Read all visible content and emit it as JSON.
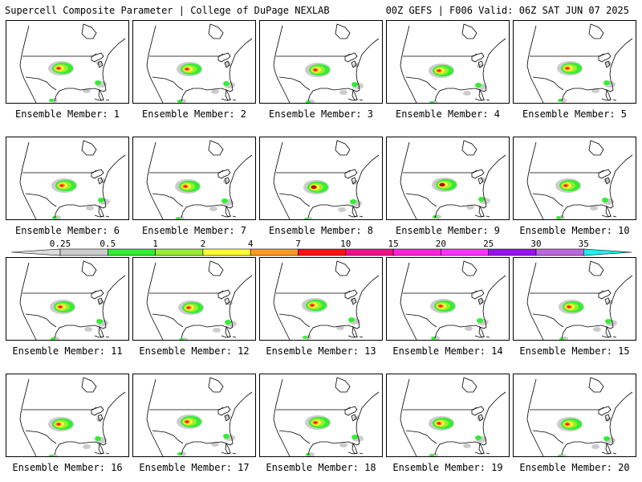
{
  "header": {
    "left": "Supercell Composite Parameter | College of DuPage NEXLAB",
    "right": "00Z GEFS | F006 Valid: 06Z SAT JUN 07 2025"
  },
  "panels": [
    {
      "label": "Ensemble Member: 1"
    },
    {
      "label": "Ensemble Member: 2"
    },
    {
      "label": "Ensemble Member: 3"
    },
    {
      "label": "Ensemble Member: 4"
    },
    {
      "label": "Ensemble Member: 5"
    },
    {
      "label": "Ensemble Member: 6"
    },
    {
      "label": "Ensemble Member: 7"
    },
    {
      "label": "Ensemble Member: 8"
    },
    {
      "label": "Ensemble Member: 9"
    },
    {
      "label": "Ensemble Member: 10"
    },
    {
      "label": "Ensemble Member: 11"
    },
    {
      "label": "Ensemble Member: 12"
    },
    {
      "label": "Ensemble Member: 13"
    },
    {
      "label": "Ensemble Member: 14"
    },
    {
      "label": "Ensemble Member: 15"
    },
    {
      "label": "Ensemble Member: 16"
    },
    {
      "label": "Ensemble Member: 17"
    },
    {
      "label": "Ensemble Member: 18"
    },
    {
      "label": "Ensemble Member: 19"
    },
    {
      "label": "Ensemble Member: 20"
    }
  ],
  "legend": {
    "ticks": [
      "0.25",
      "0.5",
      "1",
      "2",
      "4",
      "7",
      "10",
      "15",
      "20",
      "25",
      "30",
      "35"
    ],
    "colors": [
      "#cccccc",
      "#33ee33",
      "#99ee33",
      "#ffff33",
      "#ff9922",
      "#ff1111",
      "#ee1188",
      "#ff22dd",
      "#ff33ff",
      "#9911ee",
      "#bb66dd",
      "#22eeee"
    ]
  }
}
